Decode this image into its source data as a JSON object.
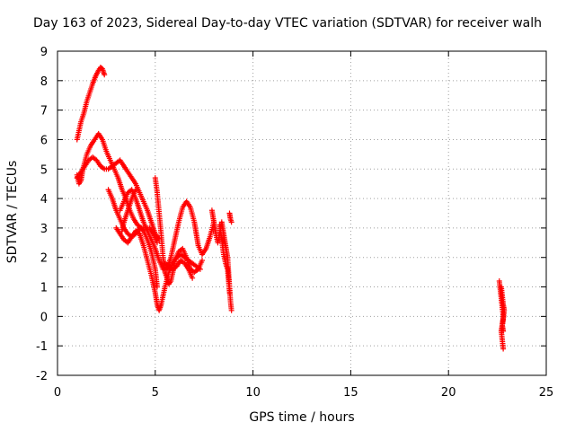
{
  "chart_data": {
    "type": "scatter",
    "title": "Day 163 of 2023, Sidereal Day-to-day VTEC variation (SDTVAR) for receiver walh",
    "xlabel": "GPS time / hours",
    "ylabel": "SDTVAR / TECUs",
    "xlim": [
      0,
      25
    ],
    "ylim": [
      -2,
      9
    ],
    "xticks": [
      0,
      5,
      10,
      15,
      20,
      25
    ],
    "yticks": [
      -2,
      -1,
      0,
      1,
      2,
      3,
      4,
      5,
      6,
      7,
      8,
      9
    ],
    "grid": true,
    "marker": "+",
    "series": [
      {
        "color": "#ff0000",
        "traces": [
          [
            [
              1.0,
              6.0
            ],
            [
              1.1,
              6.3
            ],
            [
              1.2,
              6.6
            ],
            [
              1.35,
              6.9
            ],
            [
              1.5,
              7.3
            ],
            [
              1.65,
              7.6
            ],
            [
              1.8,
              7.9
            ],
            [
              1.95,
              8.15
            ],
            [
              2.1,
              8.35
            ],
            [
              2.2,
              8.45
            ],
            [
              2.3,
              8.4
            ],
            [
              2.4,
              8.2
            ]
          ],
          [
            [
              1.0,
              4.8
            ],
            [
              1.1,
              4.5
            ],
            [
              1.2,
              4.6
            ],
            [
              1.3,
              5.0
            ],
            [
              1.5,
              5.5
            ],
            [
              1.7,
              5.8
            ],
            [
              1.9,
              6.0
            ],
            [
              2.1,
              6.2
            ],
            [
              2.3,
              6.0
            ],
            [
              2.5,
              5.6
            ],
            [
              2.7,
              5.3
            ],
            [
              2.9,
              5.0
            ],
            [
              3.1,
              4.7
            ],
            [
              3.3,
              4.3
            ],
            [
              3.5,
              4.0
            ],
            [
              3.7,
              3.6
            ],
            [
              3.9,
              3.3
            ],
            [
              4.1,
              3.1
            ],
            [
              4.3,
              3.0
            ],
            [
              4.5,
              3.0
            ],
            [
              4.7,
              3.0
            ],
            [
              4.9,
              2.8
            ],
            [
              5.1,
              2.5
            ]
          ],
          [
            [
              1.0,
              4.7
            ],
            [
              1.2,
              4.9
            ],
            [
              1.4,
              5.1
            ],
            [
              1.6,
              5.3
            ],
            [
              1.8,
              5.4
            ],
            [
              2.0,
              5.3
            ],
            [
              2.2,
              5.1
            ],
            [
              2.4,
              5.0
            ],
            [
              2.6,
              5.0
            ],
            [
              2.8,
              5.1
            ],
            [
              3.0,
              5.2
            ],
            [
              3.2,
              5.3
            ],
            [
              3.4,
              5.1
            ],
            [
              3.6,
              4.9
            ],
            [
              3.8,
              4.7
            ],
            [
              4.0,
              4.5
            ],
            [
              4.2,
              4.2
            ],
            [
              4.4,
              3.9
            ],
            [
              4.6,
              3.6
            ],
            [
              4.8,
              3.2
            ],
            [
              5.0,
              2.8
            ],
            [
              5.2,
              2.6
            ]
          ],
          [
            [
              2.6,
              4.3
            ],
            [
              2.8,
              4.0
            ],
            [
              3.0,
              3.6
            ],
            [
              3.2,
              3.3
            ],
            [
              3.4,
              3.0
            ],
            [
              3.6,
              2.8
            ],
            [
              3.8,
              2.7
            ],
            [
              4.0,
              2.8
            ],
            [
              4.2,
              3.0
            ],
            [
              4.4,
              2.9
            ],
            [
              4.6,
              2.6
            ],
            [
              4.8,
              2.2
            ],
            [
              5.0,
              1.6
            ],
            [
              5.1,
              1.0
            ]
          ],
          [
            [
              3.0,
              3.0
            ],
            [
              3.2,
              2.8
            ],
            [
              3.4,
              2.6
            ],
            [
              3.6,
              2.5
            ],
            [
              3.8,
              2.7
            ],
            [
              4.0,
              2.9
            ],
            [
              4.2,
              2.8
            ],
            [
              4.4,
              2.4
            ],
            [
              4.6,
              1.9
            ],
            [
              4.8,
              1.4
            ],
            [
              5.0,
              0.8
            ],
            [
              5.1,
              0.4
            ],
            [
              5.2,
              0.2
            ],
            [
              5.3,
              0.4
            ],
            [
              5.5,
              1.0
            ],
            [
              5.7,
              1.5
            ],
            [
              5.9,
              1.8
            ],
            [
              6.1,
              2.0
            ],
            [
              6.3,
              2.1
            ],
            [
              6.5,
              2.0
            ],
            [
              6.7,
              1.9
            ],
            [
              6.9,
              1.8
            ],
            [
              7.1,
              1.7
            ],
            [
              7.3,
              1.6
            ]
          ],
          [
            [
              4.0,
              4.3
            ],
            [
              3.8,
              4.0
            ],
            [
              3.6,
              3.6
            ],
            [
              3.4,
              3.2
            ],
            [
              3.3,
              2.9
            ]
          ],
          [
            [
              3.2,
              3.6
            ],
            [
              3.4,
              3.9
            ],
            [
              3.6,
              4.2
            ],
            [
              3.8,
              4.3
            ],
            [
              4.0,
              4.0
            ],
            [
              4.2,
              3.6
            ],
            [
              4.4,
              3.2
            ],
            [
              4.6,
              2.9
            ],
            [
              4.8,
              2.6
            ],
            [
              5.0,
              2.3
            ],
            [
              5.2,
              1.9
            ],
            [
              5.4,
              1.6
            ],
            [
              5.6,
              1.6
            ],
            [
              5.8,
              2.0
            ],
            [
              6.0,
              2.6
            ],
            [
              6.2,
              3.2
            ],
            [
              6.4,
              3.7
            ],
            [
              6.6,
              3.9
            ],
            [
              6.8,
              3.7
            ],
            [
              7.0,
              3.2
            ],
            [
              7.1,
              2.8
            ],
            [
              7.2,
              2.4
            ],
            [
              7.4,
              2.1
            ],
            [
              7.6,
              2.3
            ],
            [
              7.8,
              2.7
            ],
            [
              8.0,
              3.2
            ]
          ],
          [
            [
              5.0,
              4.7
            ],
            [
              5.1,
              4.2
            ],
            [
              5.2,
              3.5
            ],
            [
              5.3,
              2.8
            ],
            [
              5.4,
              2.0
            ],
            [
              5.5,
              1.5
            ],
            [
              5.6,
              1.3
            ],
            [
              5.7,
              1.1
            ],
            [
              5.8,
              1.2
            ],
            [
              5.9,
              1.5
            ],
            [
              6.0,
              1.9
            ],
            [
              6.2,
              2.2
            ],
            [
              6.4,
              2.3
            ],
            [
              6.6,
              2.0
            ],
            [
              6.8,
              1.6
            ],
            [
              7.0,
              1.5
            ],
            [
              7.2,
              1.6
            ],
            [
              7.4,
              1.9
            ]
          ],
          [
            [
              5.5,
              1.8
            ],
            [
              5.7,
              1.7
            ],
            [
              5.9,
              1.6
            ],
            [
              6.1,
              1.7
            ],
            [
              6.3,
              1.9
            ],
            [
              6.5,
              1.8
            ],
            [
              6.7,
              1.6
            ],
            [
              6.9,
              1.3
            ]
          ],
          [
            [
              7.9,
              3.6
            ],
            [
              8.0,
              3.2
            ],
            [
              8.1,
              2.8
            ],
            [
              8.2,
              2.5
            ],
            [
              8.3,
              2.8
            ],
            [
              8.4,
              3.2
            ],
            [
              8.5,
              2.8
            ],
            [
              8.6,
              2.4
            ],
            [
              8.7,
              2.0
            ],
            [
              8.75,
              1.5
            ],
            [
              8.8,
              1.0
            ],
            [
              8.85,
              0.5
            ],
            [
              8.9,
              0.2
            ]
          ],
          [
            [
              8.3,
              3.1
            ],
            [
              8.4,
              2.6
            ],
            [
              8.5,
              2.1
            ],
            [
              8.6,
              1.8
            ],
            [
              8.7,
              1.6
            ],
            [
              8.75,
              1.2
            ],
            [
              8.8,
              0.8
            ]
          ],
          [
            [
              8.8,
              3.5
            ],
            [
              8.85,
              3.3
            ],
            [
              8.9,
              3.2
            ]
          ],
          [
            [
              22.6,
              1.2
            ],
            [
              22.65,
              0.9
            ],
            [
              22.7,
              0.6
            ],
            [
              22.75,
              0.3
            ],
            [
              22.8,
              0.0
            ],
            [
              22.75,
              -0.3
            ],
            [
              22.7,
              -0.5
            ],
            [
              22.75,
              -0.8
            ],
            [
              22.8,
              -1.1
            ]
          ],
          [
            [
              22.7,
              1.0
            ],
            [
              22.75,
              0.7
            ],
            [
              22.8,
              0.4
            ],
            [
              22.85,
              0.2
            ],
            [
              22.8,
              -0.1
            ],
            [
              22.75,
              -0.3
            ],
            [
              22.8,
              -0.5
            ]
          ]
        ]
      }
    ]
  }
}
